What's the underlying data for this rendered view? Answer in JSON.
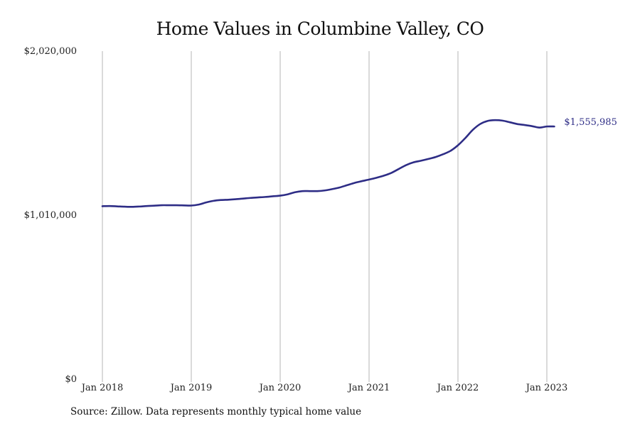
{
  "chart_data": {
    "type": "line",
    "title": "Home Values in Columbine Valley, CO",
    "xlabel": "",
    "ylabel": "",
    "x_tick_labels": [
      "Jan 2018",
      "Jan 2019",
      "Jan 2020",
      "Jan 2021",
      "Jan 2022",
      "Jan 2023"
    ],
    "y_tick_labels": [
      "$0",
      "$1,010,000",
      "$2,020,000"
    ],
    "y_ticks": [
      0,
      1010000,
      2020000
    ],
    "ylim": [
      0,
      2020000
    ],
    "xlim": [
      "2018-01",
      "2023-02"
    ],
    "grid": "vertical",
    "line_color": "#2e2d86",
    "end_label": "$1,555,985",
    "series": [
      {
        "x": [
          "2018-01",
          "2018-02",
          "2018-03",
          "2018-04",
          "2018-05",
          "2018-06",
          "2018-07",
          "2018-08",
          "2018-09",
          "2018-10",
          "2018-11",
          "2018-12",
          "2019-01",
          "2019-02",
          "2019-03",
          "2019-04",
          "2019-05",
          "2019-06",
          "2019-07",
          "2019-08",
          "2019-09",
          "2019-10",
          "2019-11",
          "2019-12",
          "2020-01",
          "2020-02",
          "2020-03",
          "2020-04",
          "2020-05",
          "2020-06",
          "2020-07",
          "2020-08",
          "2020-09",
          "2020-10",
          "2020-11",
          "2020-12",
          "2021-01",
          "2021-02",
          "2021-03",
          "2021-04",
          "2021-05",
          "2021-06",
          "2021-07",
          "2021-08",
          "2021-09",
          "2021-10",
          "2021-11",
          "2021-12",
          "2022-01",
          "2022-02",
          "2022-03",
          "2022-04",
          "2022-05",
          "2022-06",
          "2022-07",
          "2022-08",
          "2022-09",
          "2022-10",
          "2022-11",
          "2022-12",
          "2023-01",
          "2023-02"
        ],
        "values": [
          1065000,
          1066000,
          1064000,
          1062000,
          1061000,
          1063000,
          1066000,
          1068000,
          1071000,
          1071000,
          1071000,
          1070000,
          1069000,
          1075000,
          1088000,
          1098000,
          1103000,
          1105000,
          1108000,
          1112000,
          1116000,
          1119000,
          1122000,
          1126000,
          1130000,
          1138000,
          1151000,
          1158000,
          1158000,
          1158000,
          1162000,
          1170000,
          1180000,
          1194000,
          1208000,
          1219000,
          1229000,
          1240000,
          1253000,
          1270000,
          1294000,
          1318000,
          1335000,
          1345000,
          1356000,
          1368000,
          1385000,
          1406000,
          1440000,
          1485000,
          1535000,
          1571000,
          1590000,
          1595000,
          1592000,
          1582000,
          1571000,
          1565000,
          1558000,
          1549000,
          1556000,
          1555985
        ]
      }
    ]
  },
  "source_note": "Source: Zillow. Data represents monthly typical home value"
}
